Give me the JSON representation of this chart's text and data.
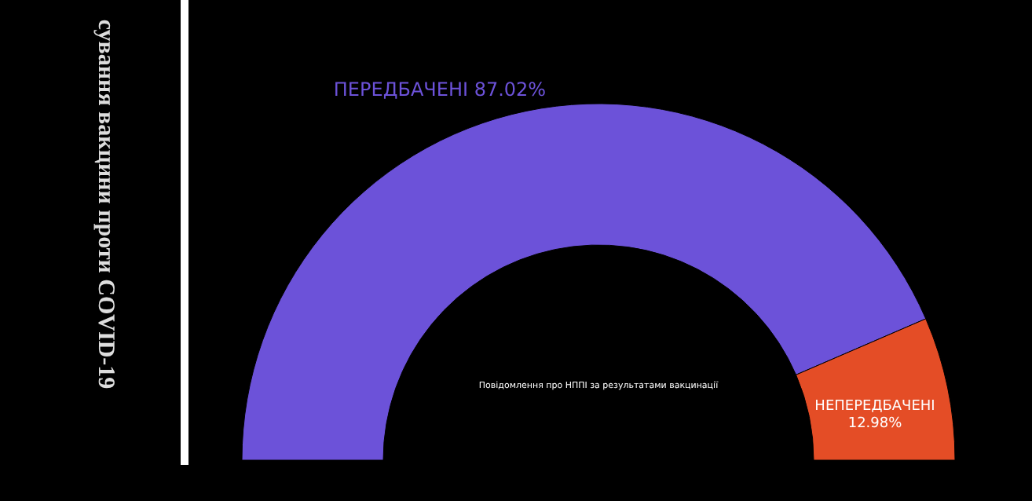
{
  "chart_data": {
    "type": "donut",
    "title": "Повідомлення про НППІ за результатами вакцинації",
    "categories": [
      "ПЕРЕДБАЧЕНІ",
      "НЕПЕРЕДБАЧЕНІ"
    ],
    "values": [
      87.02,
      12.98
    ],
    "colors": [
      "#6c52d9",
      "#e44d26"
    ],
    "value_labels": [
      "87.02%",
      "12.98%"
    ],
    "annotations": [
      "сування вакцини проти COVID-19"
    ]
  }
}
